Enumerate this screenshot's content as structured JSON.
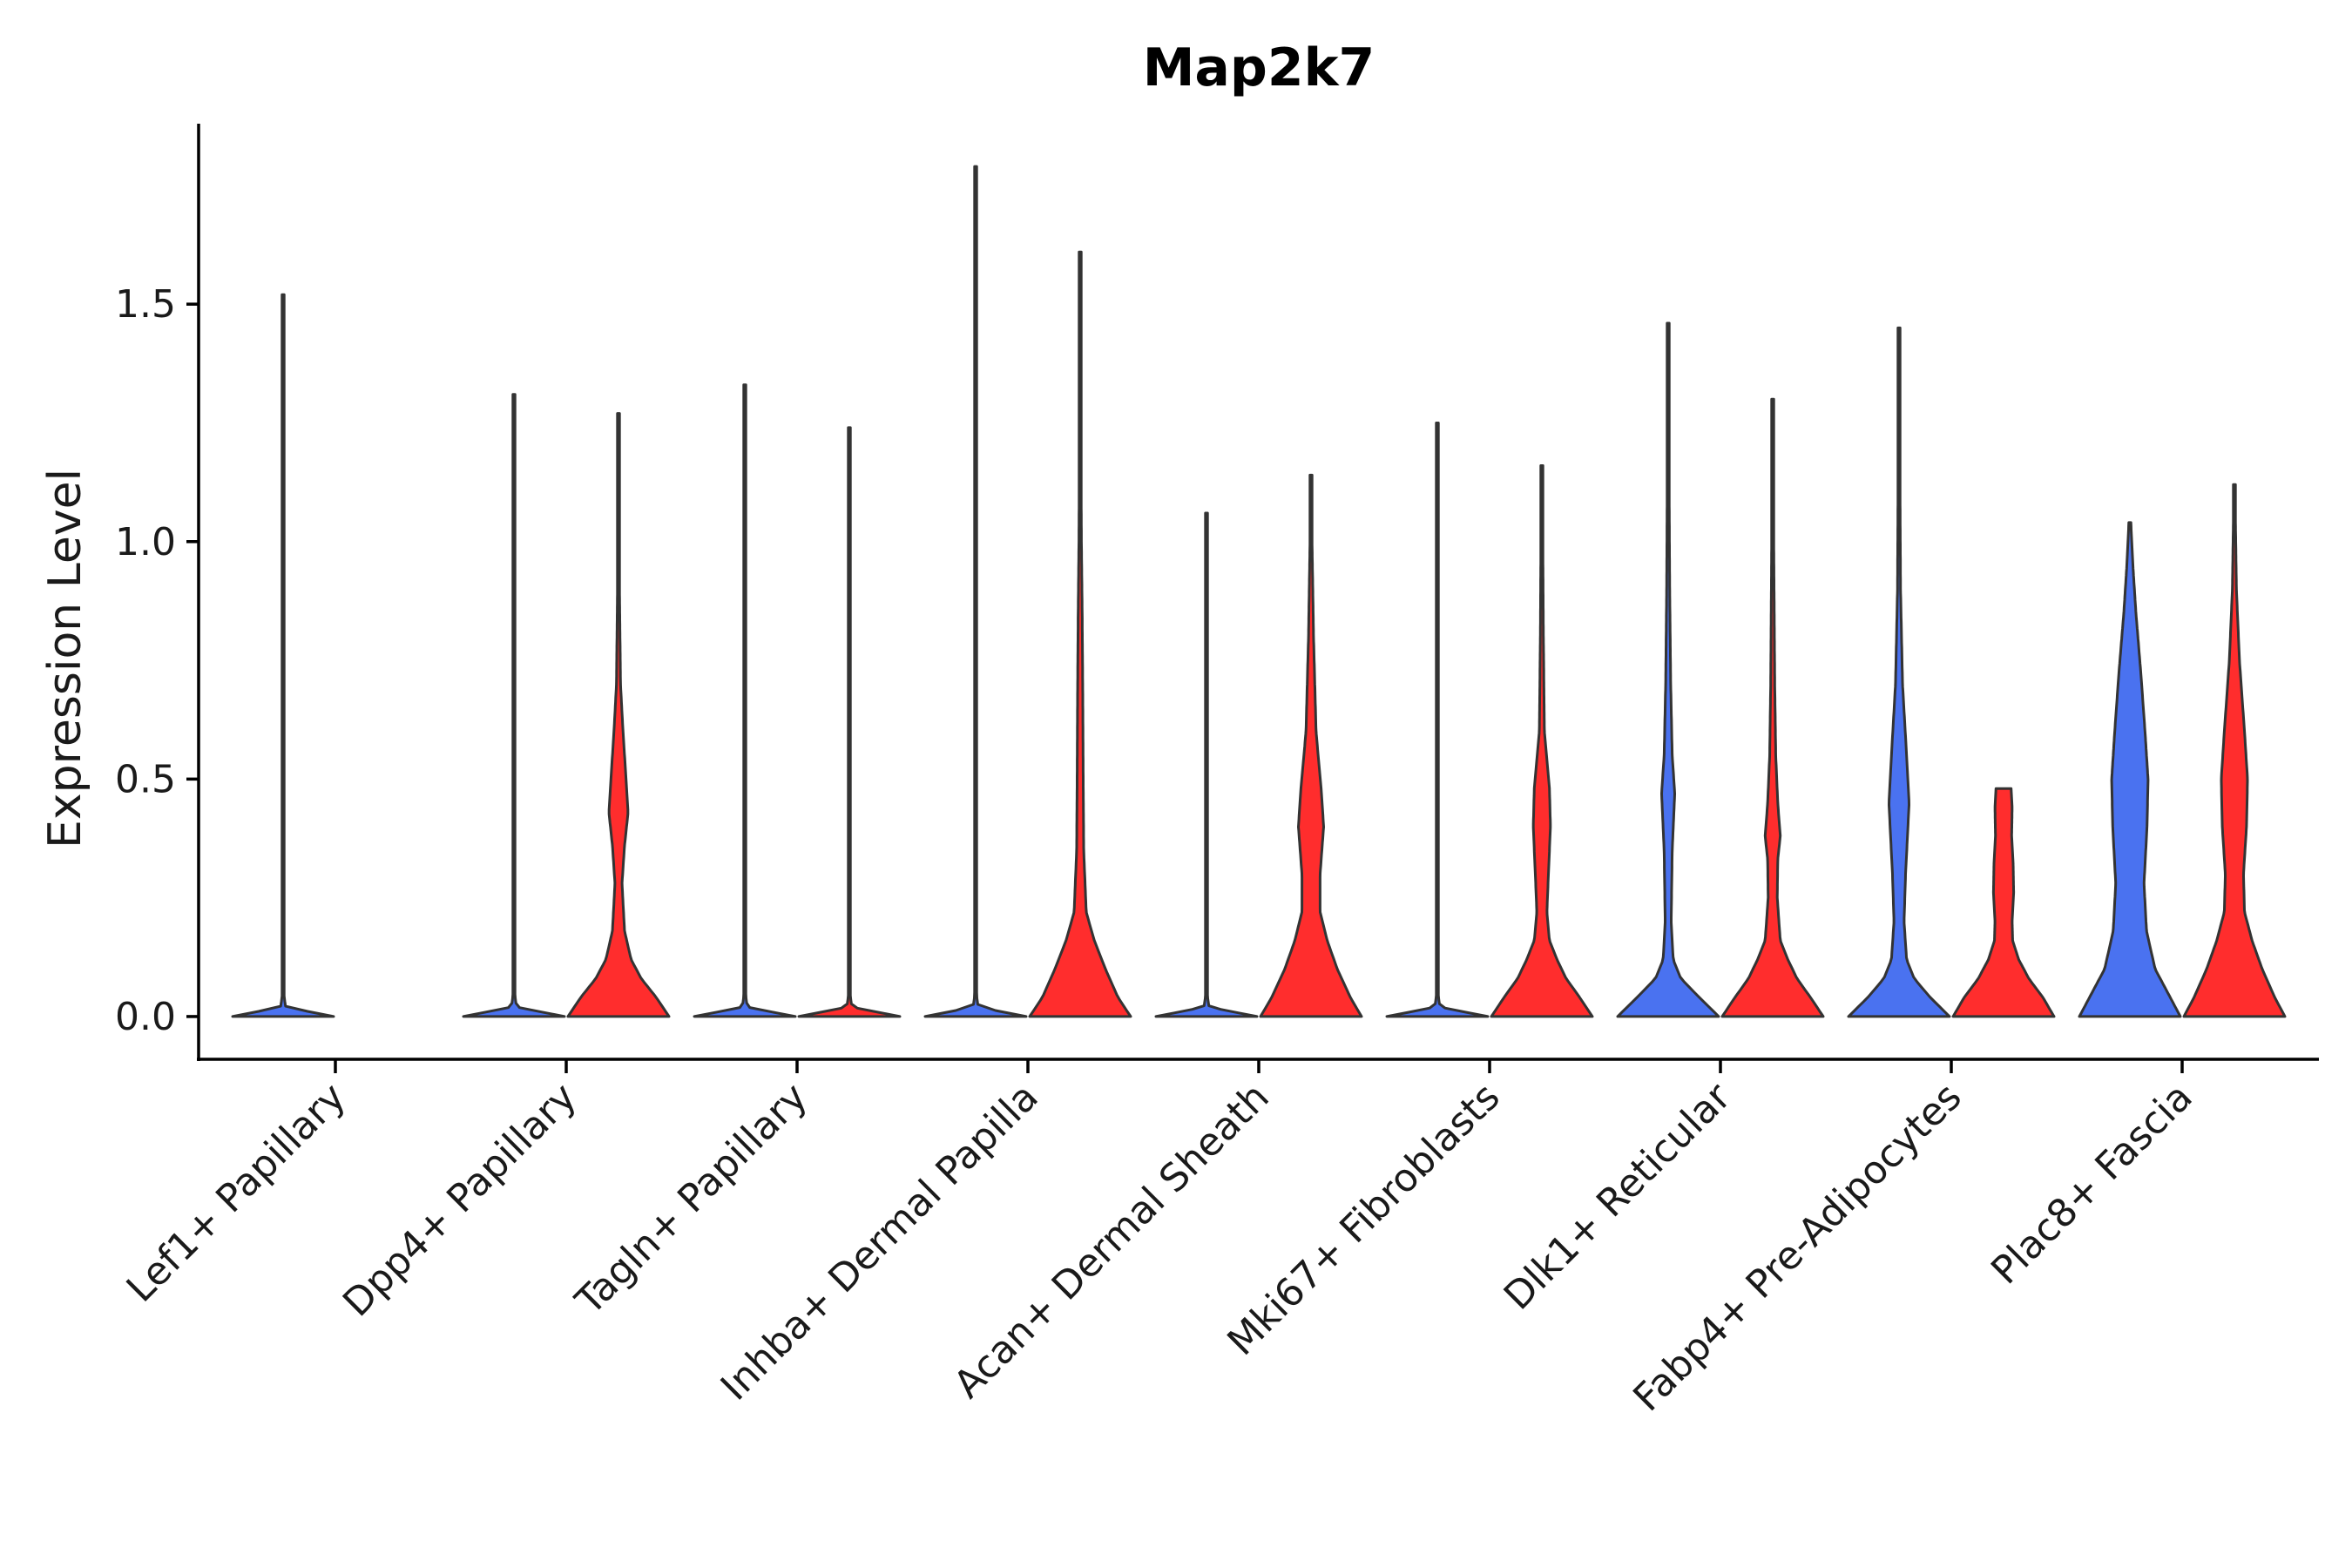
{
  "chart_data": {
    "type": "violin",
    "title": "Map2k7",
    "xlabel": "",
    "ylabel": "Expression Level",
    "ylim": [
      -0.09,
      1.88
    ],
    "yticks": [
      0.0,
      0.5,
      1.0,
      1.5
    ],
    "ytick_labels": [
      "0.0",
      "0.5",
      "1.0",
      "1.5"
    ],
    "grid": false,
    "legend": "none",
    "colors": {
      "group_a": "#4a72f0",
      "group_b": "#ff2d2d",
      "outline": "#333333"
    },
    "categories": [
      "Lef1+ Papillary",
      "Dpp4+ Papillary",
      "Tagln+ Papillary",
      "Inhba+ Dermal Papilla",
      "Acan+ Dermal Sheath",
      "Mki67+ Fibroblasts",
      "Dlk1+ Reticular",
      "Fabp4+ Pre-Adipocytes",
      "Plac8+ Fascia"
    ],
    "series": [
      {
        "name": "group_a",
        "color": "#4a72f0",
        "violins": [
          {
            "max": 1.52,
            "profile": [
              [
                0,
                1
              ],
              [
                0.02,
                0.05
              ],
              [
                0.05,
                0.01
              ],
              [
                1.52,
                0.005
              ]
            ]
          },
          {
            "max": 1.31,
            "profile": [
              [
                0,
                1
              ],
              [
                0.02,
                0.05
              ],
              [
                0.05,
                0.01
              ],
              [
                1.31,
                0.005
              ]
            ]
          },
          {
            "max": 1.33,
            "profile": [
              [
                0,
                1
              ],
              [
                0.02,
                0.05
              ],
              [
                0.05,
                0.01
              ],
              [
                1.33,
                0.005
              ]
            ]
          },
          {
            "max": 1.79,
            "profile": [
              [
                0,
                1
              ],
              [
                0.02,
                0.05
              ],
              [
                0.05,
                0.01
              ],
              [
                1.79,
                0.005
              ]
            ]
          },
          {
            "max": 1.06,
            "profile": [
              [
                0,
                1
              ],
              [
                0.02,
                0.05
              ],
              [
                0.05,
                0.01
              ],
              [
                1.06,
                0.005
              ]
            ]
          },
          {
            "max": 1.25,
            "profile": [
              [
                0,
                1
              ],
              [
                0.02,
                0.05
              ],
              [
                0.05,
                0.01
              ],
              [
                1.25,
                0.005
              ]
            ]
          },
          {
            "max": 1.46,
            "profile": [
              [
                0,
                1
              ],
              [
                0.04,
                0.62
              ],
              [
                0.08,
                0.25
              ],
              [
                0.12,
                0.1
              ],
              [
                0.2,
                0.06
              ],
              [
                0.35,
                0.08
              ],
              [
                0.47,
                0.13
              ],
              [
                0.55,
                0.08
              ],
              [
                0.7,
                0.05
              ],
              [
                0.9,
                0.03
              ],
              [
                1.2,
                0.015
              ],
              [
                1.46,
                0.01
              ]
            ]
          },
          {
            "max": 1.45,
            "profile": [
              [
                0,
                1
              ],
              [
                0.04,
                0.62
              ],
              [
                0.08,
                0.3
              ],
              [
                0.12,
                0.15
              ],
              [
                0.2,
                0.1
              ],
              [
                0.3,
                0.13
              ],
              [
                0.45,
                0.2
              ],
              [
                0.55,
                0.15
              ],
              [
                0.7,
                0.07
              ],
              [
                0.9,
                0.03
              ],
              [
                1.2,
                0.015
              ],
              [
                1.45,
                0.01
              ]
            ]
          },
          {
            "max": 1.04,
            "profile": [
              [
                0,
                1
              ],
              [
                0.04,
                0.8
              ],
              [
                0.1,
                0.5
              ],
              [
                0.18,
                0.33
              ],
              [
                0.28,
                0.28
              ],
              [
                0.4,
                0.34
              ],
              [
                0.5,
                0.36
              ],
              [
                0.6,
                0.3
              ],
              [
                0.72,
                0.22
              ],
              [
                0.85,
                0.12
              ],
              [
                0.95,
                0.06
              ],
              [
                1.04,
                0.02
              ]
            ]
          }
        ]
      },
      {
        "name": "group_b",
        "color": "#ff2d2d",
        "violins": [
          null,
          {
            "max": 1.27,
            "profile": [
              [
                0,
                1
              ],
              [
                0.04,
                0.75
              ],
              [
                0.08,
                0.45
              ],
              [
                0.12,
                0.25
              ],
              [
                0.18,
                0.12
              ],
              [
                0.28,
                0.07
              ],
              [
                0.36,
                0.12
              ],
              [
                0.43,
                0.19
              ],
              [
                0.5,
                0.15
              ],
              [
                0.6,
                0.09
              ],
              [
                0.7,
                0.04
              ],
              [
                0.9,
                0.02
              ],
              [
                1.27,
                0.01
              ]
            ]
          },
          {
            "max": 1.24,
            "profile": [
              [
                0,
                1
              ],
              [
                0.02,
                0.05
              ],
              [
                0.05,
                0.01
              ],
              [
                1.24,
                0.005
              ]
            ]
          },
          {
            "max": 1.61,
            "profile": [
              [
                0,
                1
              ],
              [
                0.04,
                0.75
              ],
              [
                0.1,
                0.5
              ],
              [
                0.16,
                0.28
              ],
              [
                0.22,
                0.12
              ],
              [
                0.35,
                0.07
              ],
              [
                0.5,
                0.06
              ],
              [
                0.7,
                0.05
              ],
              [
                0.85,
                0.04
              ],
              [
                1.0,
                0.025
              ],
              [
                1.2,
                0.015
              ],
              [
                1.61,
                0.01
              ]
            ]
          },
          {
            "max": 1.14,
            "profile": [
              [
                0,
                1
              ],
              [
                0.04,
                0.78
              ],
              [
                0.1,
                0.52
              ],
              [
                0.16,
                0.32
              ],
              [
                0.22,
                0.18
              ],
              [
                0.3,
                0.18
              ],
              [
                0.4,
                0.25
              ],
              [
                0.48,
                0.2
              ],
              [
                0.6,
                0.1
              ],
              [
                0.8,
                0.05
              ],
              [
                1.0,
                0.02
              ],
              [
                1.14,
                0.01
              ]
            ]
          },
          {
            "max": 1.16,
            "profile": [
              [
                0,
                1
              ],
              [
                0.04,
                0.75
              ],
              [
                0.08,
                0.48
              ],
              [
                0.12,
                0.3
              ],
              [
                0.16,
                0.15
              ],
              [
                0.22,
                0.1
              ],
              [
                0.3,
                0.13
              ],
              [
                0.4,
                0.17
              ],
              [
                0.48,
                0.15
              ],
              [
                0.6,
                0.05
              ],
              [
                0.8,
                0.03
              ],
              [
                1.16,
                0.01
              ]
            ]
          },
          {
            "max": 1.3,
            "profile": [
              [
                0,
                1
              ],
              [
                0.04,
                0.75
              ],
              [
                0.08,
                0.48
              ],
              [
                0.12,
                0.3
              ],
              [
                0.16,
                0.15
              ],
              [
                0.25,
                0.09
              ],
              [
                0.33,
                0.1
              ],
              [
                0.38,
                0.15
              ],
              [
                0.45,
                0.1
              ],
              [
                0.55,
                0.06
              ],
              [
                0.7,
                0.04
              ],
              [
                1.0,
                0.02
              ],
              [
                1.3,
                0.01
              ]
            ]
          },
          {
            "max": 0.48,
            "profile": [
              [
                0,
                1
              ],
              [
                0.04,
                0.78
              ],
              [
                0.08,
                0.5
              ],
              [
                0.12,
                0.3
              ],
              [
                0.16,
                0.18
              ],
              [
                0.2,
                0.17
              ],
              [
                0.26,
                0.2
              ],
              [
                0.32,
                0.19
              ],
              [
                0.38,
                0.16
              ],
              [
                0.44,
                0.17
              ],
              [
                0.48,
                0.15
              ]
            ]
          },
          {
            "max": 1.12,
            "profile": [
              [
                0,
                1
              ],
              [
                0.04,
                0.8
              ],
              [
                0.1,
                0.55
              ],
              [
                0.16,
                0.35
              ],
              [
                0.22,
                0.2
              ],
              [
                0.3,
                0.18
              ],
              [
                0.4,
                0.24
              ],
              [
                0.5,
                0.26
              ],
              [
                0.6,
                0.2
              ],
              [
                0.75,
                0.1
              ],
              [
                0.9,
                0.04
              ],
              [
                1.12,
                0.01
              ]
            ]
          }
        ]
      }
    ]
  }
}
